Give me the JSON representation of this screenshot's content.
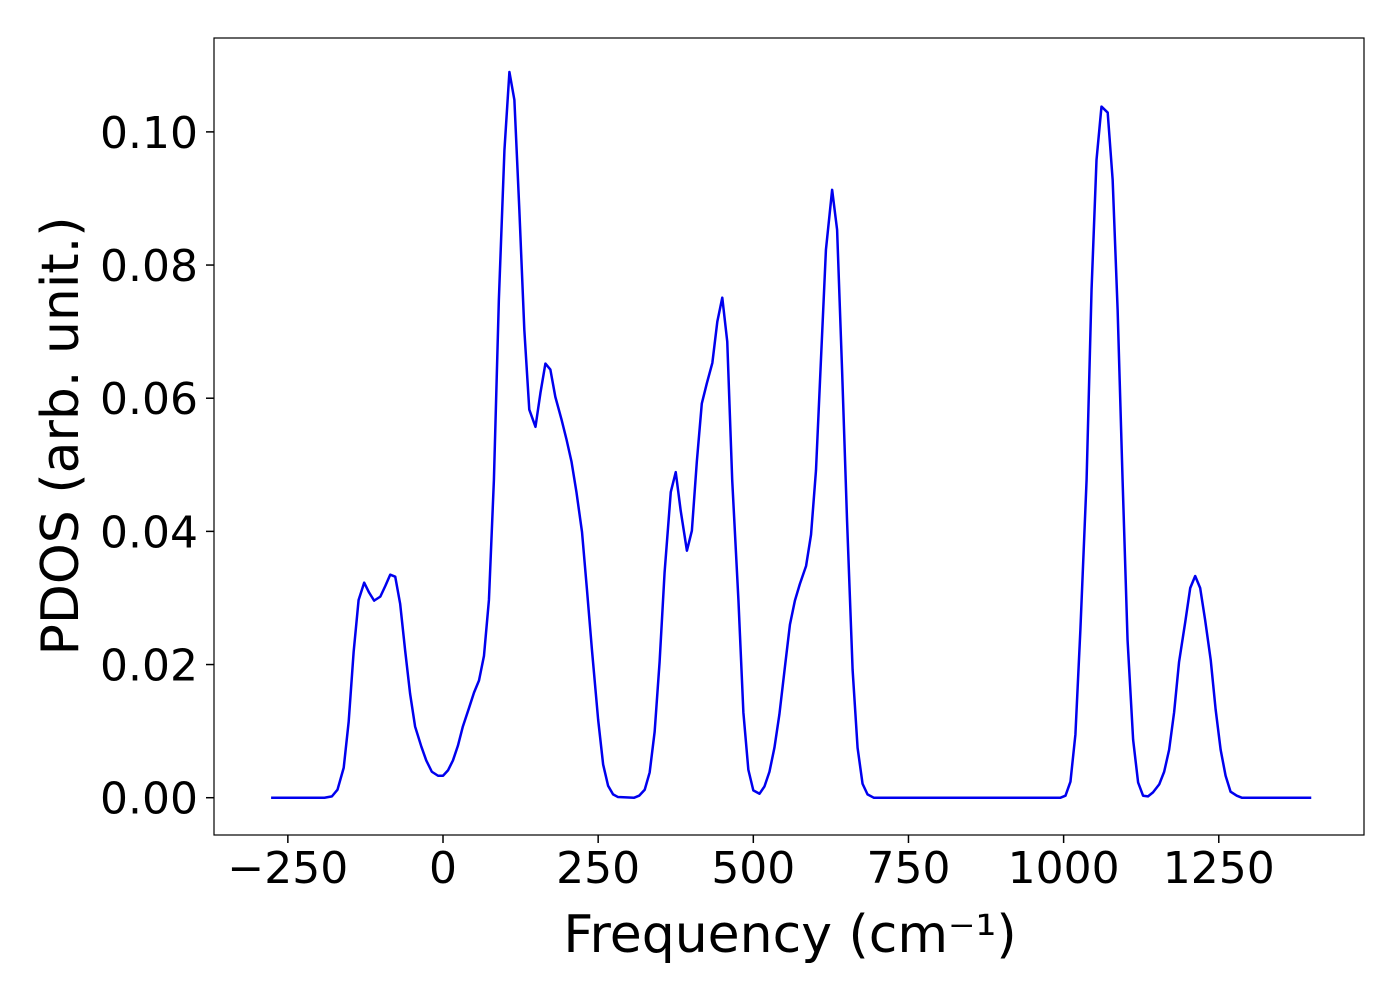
{
  "chart_data": {
    "type": "line",
    "xlabel": "Frequency (cm⁻¹)",
    "ylabel": "PDOS (arb. unit.)",
    "xlim": [
      -369,
      1484
    ],
    "ylim": [
      -0.0056,
      0.1141
    ],
    "xticks": [
      {
        "value": -250,
        "label": "−250"
      },
      0,
      250,
      500,
      750,
      1000,
      1250
    ],
    "yticks": [
      {
        "value": 0,
        "label": "0.00"
      },
      {
        "value": 0.02,
        "label": "0.02"
      },
      {
        "value": 0.04,
        "label": "0.04"
      },
      {
        "value": 0.06,
        "label": "0.06"
      },
      {
        "value": 0.08,
        "label": "0.08"
      },
      {
        "value": 0.1,
        "label": "0.10"
      }
    ],
    "grid": false,
    "series": [
      {
        "color": "#0000ee",
        "x": [
          -277,
          -191,
          -179,
          -170,
          -160,
          -152,
          -144,
          -136,
          -127,
          -119,
          -111,
          -101,
          -93,
          -85,
          -77,
          -69,
          -61,
          -53,
          -45,
          -35,
          -27,
          -18,
          -8,
          0,
          8,
          16,
          24,
          32,
          42,
          50,
          58,
          66,
          74,
          82,
          90,
          99,
          107,
          115,
          123,
          131,
          139,
          149,
          157,
          165,
          173,
          181,
          191,
          199,
          207,
          215,
          224,
          232,
          240,
          250,
          258,
          266,
          274,
          282,
          308,
          316,
          325,
          333,
          341,
          349,
          357,
          367,
          375,
          383,
          393,
          401,
          409,
          417,
          425,
          434,
          442,
          450,
          458,
          466,
          476,
          484,
          492,
          500,
          510,
          518,
          526,
          534,
          542,
          551,
          559,
          567,
          575,
          585,
          593,
          601,
          609,
          617,
          627,
          635,
          643,
          651,
          660,
          668,
          676,
          684,
          694,
          995,
          1003,
          1011,
          1019,
          1027,
          1037,
          1045,
          1053,
          1061,
          1071,
          1079,
          1087,
          1095,
          1103,
          1112,
          1120,
          1128,
          1136,
          1144,
          1154,
          1162,
          1170,
          1178,
          1186,
          1196,
          1204,
          1212,
          1220,
          1228,
          1237,
          1245,
          1253,
          1261,
          1269,
          1279,
          1287,
          1399
        ],
        "values": [
          0,
          0,
          0.0002,
          0.0012,
          0.0045,
          0.0114,
          0.0219,
          0.0297,
          0.0323,
          0.0308,
          0.0296,
          0.0302,
          0.0318,
          0.0335,
          0.0332,
          0.0291,
          0.0221,
          0.0156,
          0.0107,
          0.0077,
          0.0056,
          0.0039,
          0.0033,
          0.0033,
          0.0041,
          0.0056,
          0.0078,
          0.0107,
          0.0135,
          0.0158,
          0.0176,
          0.0213,
          0.0297,
          0.0477,
          0.0748,
          0.0973,
          0.109,
          0.1048,
          0.0883,
          0.0703,
          0.0583,
          0.0557,
          0.0608,
          0.0652,
          0.0643,
          0.0602,
          0.0568,
          0.0538,
          0.0505,
          0.0459,
          0.0399,
          0.0312,
          0.0222,
          0.0117,
          0.005,
          0.0018,
          0.0005,
          0.0001,
          0,
          0.0003,
          0.0012,
          0.0038,
          0.0099,
          0.0204,
          0.0338,
          0.0459,
          0.0489,
          0.0431,
          0.0371,
          0.0401,
          0.0505,
          0.0592,
          0.0622,
          0.0653,
          0.0715,
          0.0751,
          0.0685,
          0.0477,
          0.0297,
          0.0128,
          0.0042,
          0.0011,
          0.0006,
          0.0017,
          0.0039,
          0.0075,
          0.0125,
          0.0197,
          0.026,
          0.0296,
          0.0321,
          0.0348,
          0.0395,
          0.0492,
          0.0658,
          0.0823,
          0.0913,
          0.0853,
          0.0643,
          0.0417,
          0.0192,
          0.0075,
          0.0021,
          0.0005,
          0,
          0,
          0.0003,
          0.0024,
          0.0095,
          0.0252,
          0.0477,
          0.0763,
          0.0958,
          0.1038,
          0.1029,
          0.0928,
          0.0733,
          0.0477,
          0.0237,
          0.0087,
          0.0023,
          0.0003,
          0.0002,
          0.0008,
          0.002,
          0.0039,
          0.0072,
          0.0128,
          0.0204,
          0.0264,
          0.0315,
          0.0333,
          0.0315,
          0.0267,
          0.0207,
          0.0132,
          0.0072,
          0.0033,
          0.0009,
          0.0003,
          0,
          0
        ]
      }
    ]
  }
}
